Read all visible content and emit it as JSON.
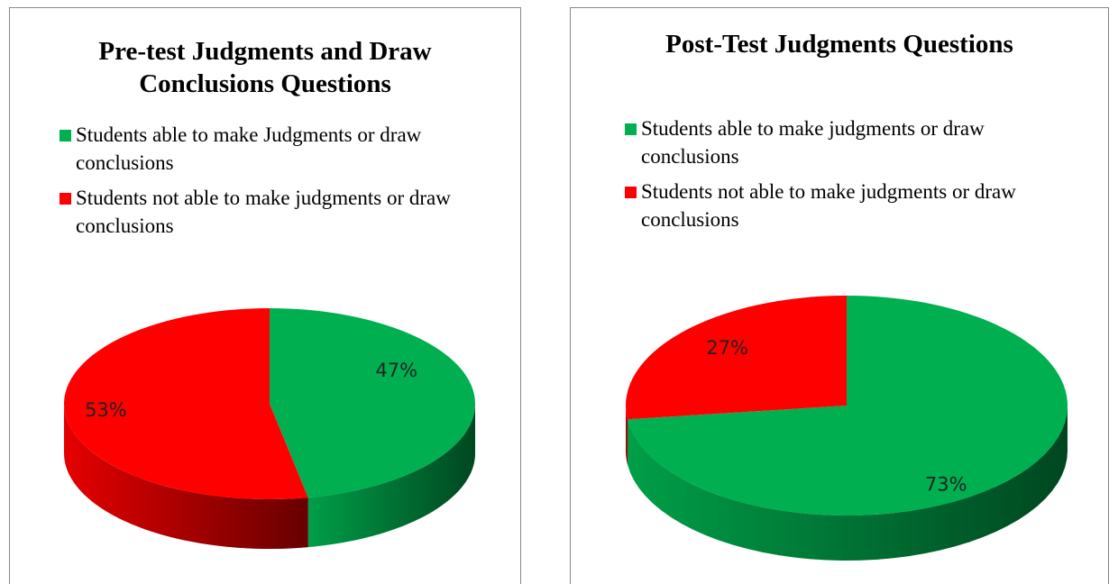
{
  "chart_data": [
    {
      "type": "pie",
      "title": "Pre-test Judgments and Draw Conclusions Questions",
      "categories": [
        "Students able to make Judgments or draw conclusions",
        "Students not able to make judgments or draw conclusions"
      ],
      "values": [
        47,
        53
      ],
      "value_labels": [
        "47%",
        "53%"
      ],
      "colors": [
        "#00b050",
        "#ff0000"
      ]
    },
    {
      "type": "pie",
      "title": "Post-Test Judgments Questions",
      "categories": [
        "Students able to make judgments or draw conclusions",
        "Students not able to make judgments or draw conclusions"
      ],
      "values": [
        73,
        27
      ],
      "value_labels": [
        "73%",
        "27%"
      ],
      "colors": [
        "#00b050",
        "#ff0000"
      ]
    }
  ]
}
